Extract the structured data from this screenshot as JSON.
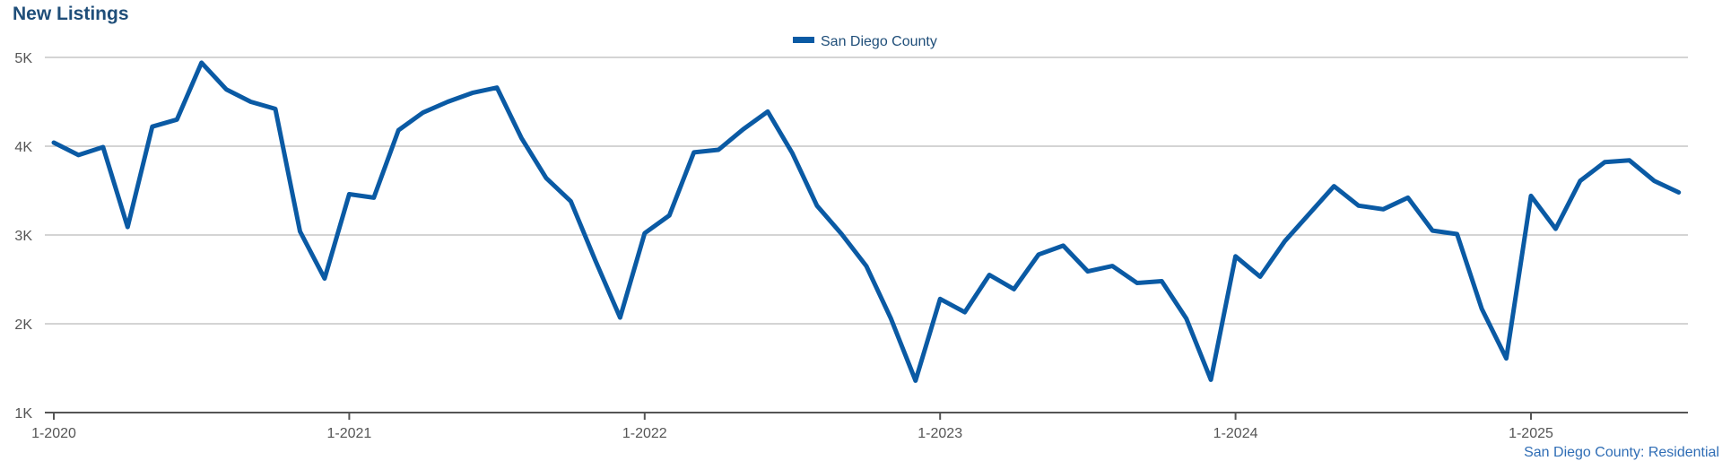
{
  "title": "New Listings",
  "footnote": "San Diego County: Residential",
  "colors": {
    "series": "#0a5aa4",
    "title": "#1f4e79",
    "grid": "#bbbbbb",
    "axis": "#555555"
  },
  "chart_data": {
    "type": "line",
    "legend": "top-center",
    "grid": true,
    "ylim": [
      1000,
      5000
    ],
    "yticks": [
      1000,
      2000,
      3000,
      4000,
      5000
    ],
    "ytick_labels": [
      "1K",
      "2K",
      "3K",
      "4K",
      "5K"
    ],
    "xticks": [
      "1-2020",
      "1-2021",
      "1-2022",
      "1-2023",
      "1-2024",
      "1-2025"
    ],
    "series": [
      {
        "name": "San Diego County",
        "values": [
          4040,
          3900,
          3990,
          3090,
          4220,
          4300,
          4940,
          4640,
          4500,
          4420,
          3040,
          2510,
          3460,
          3420,
          4180,
          4380,
          4500,
          4600,
          4660,
          4090,
          3640,
          3380,
          2710,
          2070,
          3020,
          3220,
          3930,
          3960,
          4190,
          4390,
          3920,
          3330,
          3010,
          2650,
          2060,
          1360,
          2280,
          2130,
          2550,
          2390,
          2780,
          2880,
          2590,
          2650,
          2460,
          2480,
          2060,
          1370,
          2760,
          2530,
          2930,
          3240,
          3550,
          3330,
          3290,
          3420,
          3050,
          3010,
          2170,
          1610,
          3440,
          3070,
          3610,
          3820,
          3840,
          3610,
          3480
        ]
      }
    ]
  }
}
